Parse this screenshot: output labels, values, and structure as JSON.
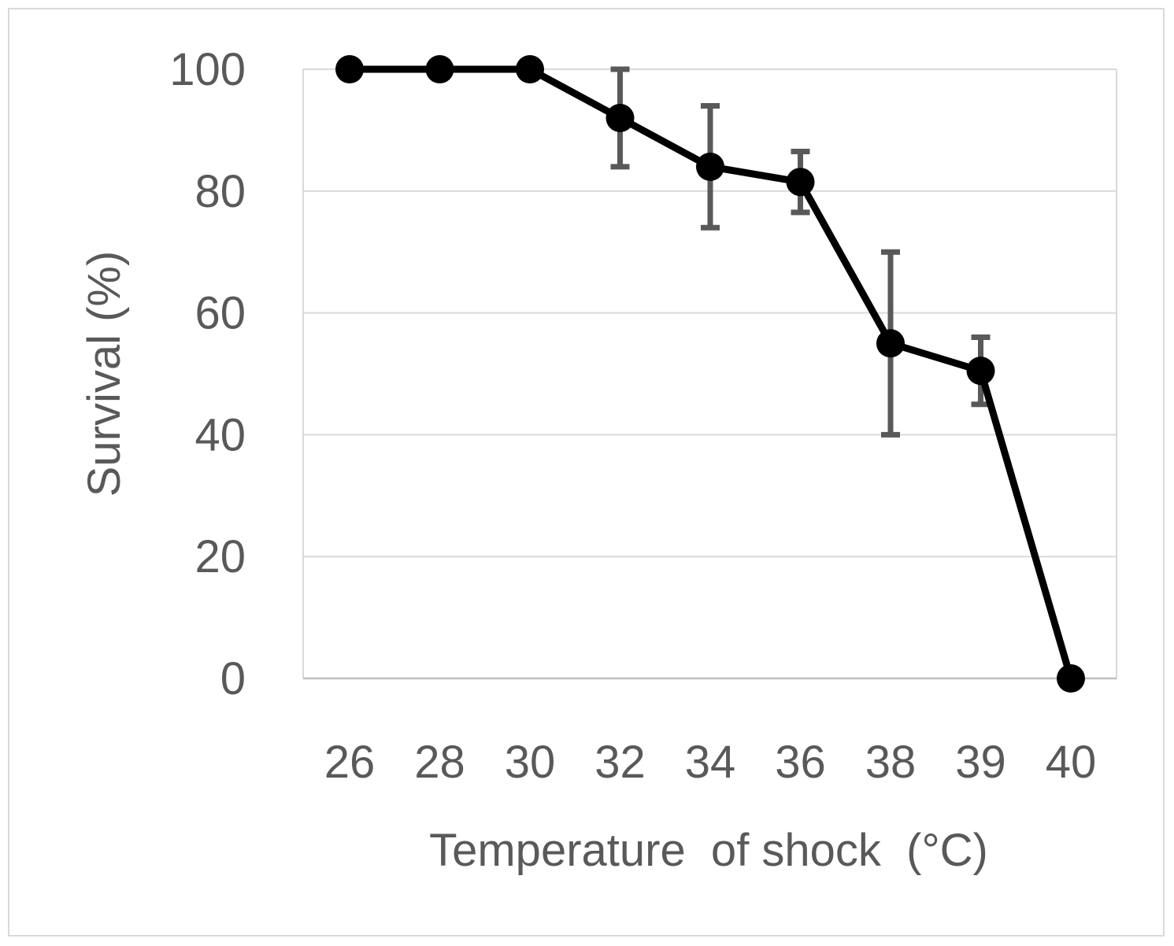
{
  "chart_data": {
    "type": "line",
    "title": "",
    "xlabel": "Temperature  of shock  (°C)",
    "ylabel": "Survival (%)",
    "categories": [
      "26",
      "28",
      "30",
      "32",
      "34",
      "36",
      "38",
      "39",
      "40"
    ],
    "series": [
      {
        "name": "Survival",
        "values": [
          100,
          100,
          100,
          92,
          84,
          81.5,
          55,
          50.5,
          0
        ],
        "error_low": [
          0,
          0,
          0,
          8,
          10,
          5,
          15,
          5.5,
          0
        ],
        "error_high": [
          0,
          0,
          0,
          8,
          10,
          5,
          15,
          5.5,
          0
        ],
        "color": "#000000"
      }
    ],
    "ylim": [
      0,
      100
    ],
    "yticks": [
      0,
      20,
      40,
      60,
      80,
      100
    ],
    "grid": true,
    "legend": "none",
    "colors": {
      "line": "#000000",
      "errorbar": "#595959",
      "grid": "#d9d9d9",
      "text": "#595959"
    }
  }
}
